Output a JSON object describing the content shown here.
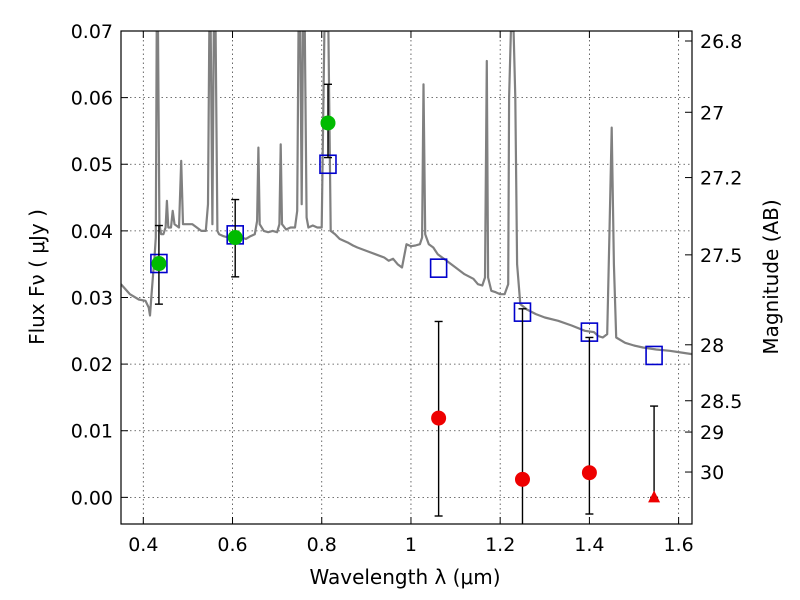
{
  "chart_data": {
    "type": "scatter",
    "xlabel": "Wavelength  λ (μm)",
    "ylabel": "Flux  Fν  ( μJy )",
    "ylabel_right": "Magnitude (AB)",
    "xlim": [
      0.35,
      1.63
    ],
    "ylim": [
      -0.004,
      0.07
    ],
    "grid": true,
    "x_ticks": [
      0.4,
      0.6,
      0.8,
      1.0,
      1.2,
      1.4,
      1.6
    ],
    "x_tick_labels": [
      "0.4",
      "0.6",
      "0.8",
      "1",
      "1.2",
      "1.4",
      "1.6"
    ],
    "y_ticks": [
      0.0,
      0.01,
      0.02,
      0.03,
      0.04,
      0.05,
      0.06,
      0.07
    ],
    "y_tick_labels": [
      "0.00",
      "0.01",
      "0.02",
      "0.03",
      "0.04",
      "0.05",
      "0.06",
      "0.07"
    ],
    "right_ticks": [
      {
        "label": "26.8",
        "flux": 0.0685
      },
      {
        "label": "27",
        "flux": 0.0578
      },
      {
        "label": "27.2",
        "flux": 0.048
      },
      {
        "label": "27.5",
        "flux": 0.0364
      },
      {
        "label": "28",
        "flux": 0.0229
      },
      {
        "label": "28.5",
        "flux": 0.0145
      },
      {
        "label": "29",
        "flux": 0.0098
      },
      {
        "label": "30",
        "flux": 0.0038
      }
    ],
    "series": [
      {
        "kind": "model_spectrum",
        "style": "line",
        "color": "#808080",
        "points": [
          [
            0.35,
            0.032
          ],
          [
            0.37,
            0.0305
          ],
          [
            0.39,
            0.0297
          ],
          [
            0.405,
            0.0295
          ],
          [
            0.412,
            0.0285
          ],
          [
            0.415,
            0.0273
          ],
          [
            0.418,
            0.03
          ],
          [
            0.422,
            0.0335
          ],
          [
            0.425,
            0.036
          ],
          [
            0.428,
            0.039
          ],
          [
            0.43,
            0.07
          ],
          [
            0.433,
            0.07
          ],
          [
            0.436,
            0.041
          ],
          [
            0.44,
            0.0395
          ],
          [
            0.445,
            0.0395
          ],
          [
            0.45,
            0.0405
          ],
          [
            0.453,
            0.0445
          ],
          [
            0.456,
            0.0405
          ],
          [
            0.462,
            0.0405
          ],
          [
            0.466,
            0.043
          ],
          [
            0.47,
            0.041
          ],
          [
            0.48,
            0.0405
          ],
          [
            0.485,
            0.0505
          ],
          [
            0.489,
            0.041
          ],
          [
            0.5,
            0.041
          ],
          [
            0.51,
            0.041
          ],
          [
            0.52,
            0.0405
          ],
          [
            0.53,
            0.04
          ],
          [
            0.54,
            0.04
          ],
          [
            0.545,
            0.044
          ],
          [
            0.548,
            0.07
          ],
          [
            0.551,
            0.07
          ],
          [
            0.555,
            0.041
          ],
          [
            0.558,
            0.07
          ],
          [
            0.562,
            0.07
          ],
          [
            0.566,
            0.04
          ],
          [
            0.57,
            0.0395
          ],
          [
            0.58,
            0.0392
          ],
          [
            0.59,
            0.039
          ],
          [
            0.6,
            0.0388
          ],
          [
            0.61,
            0.0392
          ],
          [
            0.62,
            0.039
          ],
          [
            0.63,
            0.0388
          ],
          [
            0.64,
            0.0392
          ],
          [
            0.65,
            0.0395
          ],
          [
            0.655,
            0.0415
          ],
          [
            0.658,
            0.0525
          ],
          [
            0.661,
            0.041
          ],
          [
            0.67,
            0.04
          ],
          [
            0.68,
            0.0398
          ],
          [
            0.69,
            0.04
          ],
          [
            0.7,
            0.0398
          ],
          [
            0.705,
            0.041
          ],
          [
            0.708,
            0.053
          ],
          [
            0.711,
            0.041
          ],
          [
            0.72,
            0.0402
          ],
          [
            0.73,
            0.0405
          ],
          [
            0.74,
            0.0405
          ],
          [
            0.745,
            0.043
          ],
          [
            0.748,
            0.07
          ],
          [
            0.752,
            0.07
          ],
          [
            0.755,
            0.044
          ],
          [
            0.758,
            0.07
          ],
          [
            0.762,
            0.07
          ],
          [
            0.766,
            0.042
          ],
          [
            0.77,
            0.0405
          ],
          [
            0.78,
            0.0408
          ],
          [
            0.79,
            0.0405
          ],
          [
            0.8,
            0.0405
          ],
          [
            0.806,
            0.07
          ],
          [
            0.815,
            0.07
          ],
          [
            0.82,
            0.04
          ],
          [
            0.83,
            0.0395
          ],
          [
            0.84,
            0.0388
          ],
          [
            0.85,
            0.0385
          ],
          [
            0.86,
            0.0382
          ],
          [
            0.87,
            0.0378
          ],
          [
            0.88,
            0.0375
          ],
          [
            0.9,
            0.037
          ],
          [
            0.92,
            0.0365
          ],
          [
            0.94,
            0.036
          ],
          [
            0.95,
            0.0355
          ],
          [
            0.96,
            0.0358
          ],
          [
            0.97,
            0.035
          ],
          [
            0.98,
            0.0345
          ],
          [
            0.99,
            0.038
          ],
          [
            1.0,
            0.0377
          ],
          [
            1.01,
            0.0378
          ],
          [
            1.02,
            0.038
          ],
          [
            1.025,
            0.039
          ],
          [
            1.028,
            0.062
          ],
          [
            1.032,
            0.0395
          ],
          [
            1.04,
            0.038
          ],
          [
            1.05,
            0.0375
          ],
          [
            1.055,
            0.037
          ],
          [
            1.06,
            0.0365
          ],
          [
            1.08,
            0.0355
          ],
          [
            1.1,
            0.0345
          ],
          [
            1.12,
            0.0335
          ],
          [
            1.14,
            0.0328
          ],
          [
            1.15,
            0.032
          ],
          [
            1.16,
            0.0318
          ],
          [
            1.166,
            0.033
          ],
          [
            1.17,
            0.0655
          ],
          [
            1.173,
            0.033
          ],
          [
            1.18,
            0.031
          ],
          [
            1.19,
            0.0308
          ],
          [
            1.2,
            0.0305
          ],
          [
            1.21,
            0.0305
          ],
          [
            1.218,
            0.032
          ],
          [
            1.22,
            0.06
          ],
          [
            1.224,
            0.07
          ],
          [
            1.23,
            0.07
          ],
          [
            1.234,
            0.06
          ],
          [
            1.238,
            0.035
          ],
          [
            1.245,
            0.029
          ],
          [
            1.26,
            0.0282
          ],
          [
            1.28,
            0.0275
          ],
          [
            1.3,
            0.027
          ],
          [
            1.33,
            0.0265
          ],
          [
            1.36,
            0.0258
          ],
          [
            1.39,
            0.025
          ],
          [
            1.41,
            0.0248
          ],
          [
            1.42,
            0.0242
          ],
          [
            1.43,
            0.024
          ],
          [
            1.44,
            0.0245
          ],
          [
            1.445,
            0.04
          ],
          [
            1.45,
            0.0555
          ],
          [
            1.455,
            0.035
          ],
          [
            1.46,
            0.024
          ],
          [
            1.48,
            0.0232
          ],
          [
            1.5,
            0.0228
          ],
          [
            1.52,
            0.0225
          ],
          [
            1.55,
            0.0222
          ],
          [
            1.58,
            0.022
          ],
          [
            1.6,
            0.0218
          ],
          [
            1.63,
            0.0215
          ]
        ]
      },
      {
        "kind": "model_photometry",
        "style": "open-square",
        "color": "#0000cc",
        "points": [
          [
            0.435,
            0.0351
          ],
          [
            0.606,
            0.0394
          ],
          [
            0.814,
            0.05
          ],
          [
            1.062,
            0.0344
          ],
          [
            1.25,
            0.0278
          ],
          [
            1.4,
            0.0248
          ],
          [
            1.545,
            0.0213
          ]
        ]
      },
      {
        "kind": "detections",
        "style": "filled-circle",
        "color": "#00bb00",
        "points": [
          [
            0.435,
            0.0351
          ],
          [
            0.606,
            0.039
          ],
          [
            0.814,
            0.0562
          ]
        ],
        "yerr_low": [
          0.0061,
          0.0059,
          0.0052
        ],
        "yerr_high": [
          0.0057,
          0.0057,
          0.0058
        ]
      },
      {
        "kind": "non_detections",
        "style": "filled-circle",
        "color": "#ee0000",
        "points": [
          [
            1.062,
            0.0119
          ],
          [
            1.25,
            0.0027
          ],
          [
            1.4,
            0.0037
          ]
        ],
        "yerr_low": [
          0.0147,
          0.0071,
          0.0062
        ],
        "yerr_high": [
          0.0145,
          0.0256,
          0.0203
        ]
      },
      {
        "kind": "upper_limit",
        "style": "filled-triangle",
        "color": "#ee0000",
        "points": [
          [
            1.545,
            0.0
          ]
        ],
        "yerr_low": [
          0.0
        ],
        "yerr_high": [
          0.0137
        ]
      }
    ]
  }
}
